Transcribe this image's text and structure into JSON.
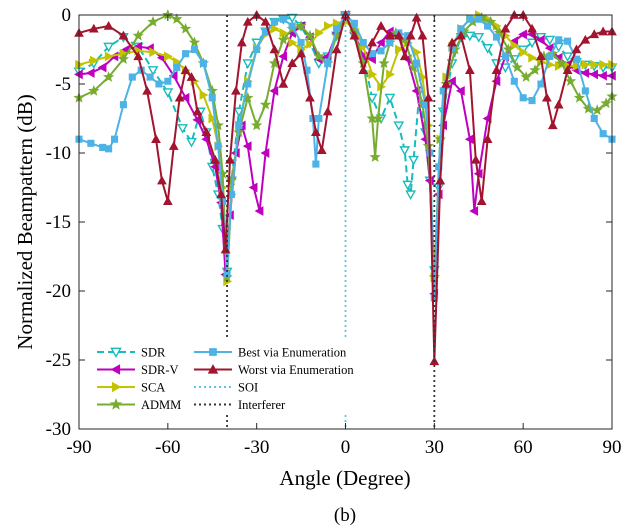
{
  "chart_data": {
    "type": "line",
    "title": "",
    "caption": "(b)",
    "xlabel": "Angle (Degree)",
    "ylabel": "Normalized Beampattern (dB)",
    "xlim": [
      -90,
      90
    ],
    "ylim": [
      -30,
      0
    ],
    "xticks": [
      -90,
      -60,
      -30,
      0,
      30,
      60,
      90
    ],
    "yticks": [
      0,
      -5,
      -10,
      -15,
      -20,
      -25,
      -30
    ],
    "grid": false,
    "legend_position": "bottom-left",
    "markers": {
      "SDR": "triangle-down",
      "SDR-V": "triangle-left",
      "SCA": "triangle-right",
      "ADMM": "star",
      "Best via Enumeration": "square",
      "Worst via Enumeration": "triangle-up"
    },
    "series": [
      {
        "name": "SDR",
        "color": "#17bcbc",
        "dash": "dashed",
        "x": [
          -90,
          -85,
          -80,
          -75,
          -70,
          -65,
          -60,
          -55,
          -52,
          -49,
          -47,
          -45,
          -43,
          -41.5,
          -40,
          -38.5,
          -36,
          -33,
          -30,
          -27,
          -24,
          -21,
          -18,
          -15,
          -12,
          -9,
          -6,
          -3,
          0,
          3,
          6,
          9,
          12,
          15,
          18,
          20,
          21,
          22,
          23,
          25,
          27,
          28.5,
          30,
          31.5,
          33,
          36,
          39,
          42,
          45,
          48,
          51,
          54,
          57,
          60,
          63,
          66,
          69,
          72,
          75,
          78,
          81,
          84,
          87,
          90
        ],
        "y": [
          -4.1,
          -3.5,
          -2.3,
          -1.6,
          -2.3,
          -4.0,
          -5.6,
          -8.2,
          -9.2,
          -7.0,
          -8.5,
          -11.0,
          -13.0,
          -15.5,
          -18.6,
          -12.0,
          -7.0,
          -3.5,
          -2.0,
          -1.2,
          -0.5,
          -0.3,
          -0.2,
          -0.8,
          -2.0,
          -3.5,
          -3.0,
          -1.5,
          0,
          -1.5,
          -3.0,
          -6.0,
          -7.5,
          -6.0,
          -8.0,
          -9.8,
          -12.3,
          -13.0,
          -10.5,
          -5.5,
          -8.5,
          -12.0,
          -18.5,
          -12.5,
          -7.0,
          -3.5,
          -1.6,
          -1.5,
          -1.6,
          -2.4,
          -3.5,
          -3.8,
          -3.2,
          -2.5,
          -2.0,
          -1.6,
          -1.8,
          -2.3,
          -3.0,
          -3.4,
          -3.6,
          -3.7,
          -3.8,
          -3.8
        ]
      },
      {
        "name": "SDR-V",
        "color": "#bf00bf",
        "dash": "solid",
        "x": [
          -90,
          -86,
          -82,
          -78,
          -74,
          -70,
          -66,
          -62,
          -58,
          -54,
          -50,
          -47,
          -44,
          -42,
          -40.5,
          -39,
          -37,
          -35,
          -33,
          -31,
          -29,
          -27,
          -24,
          -21,
          -18,
          -15,
          -12,
          -9,
          -6,
          -3,
          0,
          3,
          6,
          9,
          12,
          15,
          18,
          21,
          24,
          27,
          28.5,
          30,
          31.5,
          33,
          36,
          39,
          42,
          43.5,
          45,
          48,
          51,
          54,
          57,
          60,
          63,
          66,
          69,
          72,
          75,
          78,
          81,
          84,
          87,
          90
        ],
        "y": [
          -4.3,
          -4.2,
          -3.8,
          -3.0,
          -2.5,
          -2.3,
          -2.4,
          -3.1,
          -4.4,
          -6.0,
          -7.6,
          -9.0,
          -11.0,
          -13.6,
          -18.8,
          -14.5,
          -10.0,
          -8.0,
          -9.5,
          -12.5,
          -14.2,
          -10.0,
          -5.5,
          -3.0,
          -1.3,
          -0.8,
          -1.6,
          -3.2,
          -3.0,
          -1.3,
          0,
          -1.3,
          -3.0,
          -3.2,
          -2.0,
          -1.2,
          -1.6,
          -3.2,
          -5.5,
          -9.0,
          -12.0,
          -20.2,
          -13.0,
          -8.0,
          -4.8,
          -5.5,
          -9.0,
          -14.2,
          -11.5,
          -7.5,
          -4.8,
          -3.0,
          -1.9,
          -1.4,
          -1.4,
          -1.8,
          -2.4,
          -3.1,
          -3.6,
          -4.0,
          -4.2,
          -4.3,
          -4.4,
          -4.4
        ]
      },
      {
        "name": "SCA",
        "color": "#c3c300",
        "dash": "solid",
        "x": [
          -90,
          -85,
          -80,
          -75,
          -70,
          -65,
          -60,
          -57,
          -54,
          -51,
          -48,
          -45,
          -43,
          -41.5,
          -40,
          -38.5,
          -36,
          -33,
          -30,
          -27,
          -24,
          -21,
          -18,
          -15,
          -12,
          -9,
          -6,
          -3,
          0,
          3,
          6,
          9,
          12,
          15,
          18,
          21,
          24,
          26,
          28,
          30,
          32,
          34,
          36,
          39,
          42,
          45,
          48,
          51,
          54,
          57,
          60,
          63,
          66,
          69,
          72,
          75,
          78,
          81,
          84,
          87,
          90
        ],
        "y": [
          -3.6,
          -3.3,
          -3.0,
          -2.8,
          -2.6,
          -2.7,
          -3.0,
          -3.4,
          -4.0,
          -4.8,
          -5.8,
          -7.5,
          -9.5,
          -12.5,
          -19.3,
          -13.0,
          -8.0,
          -4.8,
          -2.4,
          -1.4,
          -1.0,
          -1.3,
          -2.0,
          -2.5,
          -2.1,
          -1.3,
          -0.8,
          -0.6,
          -0.5,
          -1.0,
          -2.3,
          -4.3,
          -5.2,
          -4.3,
          -2.5,
          -2.0,
          -2.7,
          -4.5,
          -8.0,
          -19.0,
          -9.0,
          -4.5,
          -2.3,
          -1.0,
          -0.3,
          0,
          -0.3,
          -0.8,
          -1.5,
          -2.2,
          -2.7,
          -3.1,
          -3.4,
          -3.6,
          -3.7,
          -3.7,
          -3.7,
          -3.6,
          -3.6,
          -3.6,
          -3.6
        ]
      },
      {
        "name": "ADMM",
        "color": "#77ac30",
        "dash": "solid",
        "x": [
          -90,
          -85,
          -80,
          -75,
          -70,
          -65,
          -60,
          -57,
          -54,
          -51,
          -48,
          -45,
          -43,
          -41.5,
          -40,
          -38.5,
          -36,
          -33,
          -30,
          -27,
          -24,
          -21,
          -18,
          -15,
          -12,
          -9,
          -6,
          -3,
          0,
          3,
          6,
          9,
          10,
          11,
          13,
          15,
          17,
          20,
          23,
          26,
          28,
          30,
          32,
          34,
          37,
          40,
          43,
          46,
          49,
          52,
          55,
          58,
          61,
          64,
          67,
          70,
          73,
          76,
          79,
          82,
          85,
          88,
          90
        ],
        "y": [
          -6.0,
          -5.5,
          -4.5,
          -3.2,
          -1.5,
          -0.5,
          0,
          -0.3,
          -1.0,
          -2.0,
          -3.5,
          -5.5,
          -8.0,
          -11.5,
          -19.0,
          -12.0,
          -8.5,
          -6.0,
          -8.0,
          -6.5,
          -3.5,
          -1.8,
          -1.0,
          -0.8,
          -1.5,
          -3.0,
          -3.5,
          -1.5,
          0,
          -1.2,
          -3.5,
          -7.5,
          -10.3,
          -7.5,
          -3.5,
          -2.0,
          -1.3,
          -1.8,
          -3.8,
          -6.5,
          -9.5,
          -19.0,
          -9.0,
          -5.0,
          -2.5,
          -1.2,
          -0.5,
          -0.2,
          -0.5,
          -1.3,
          -2.5,
          -3.8,
          -4.5,
          -4.0,
          -3.0,
          -2.8,
          -3.5,
          -4.8,
          -6.0,
          -6.8,
          -6.9,
          -6.4,
          -5.9
        ]
      },
      {
        "name": "Best via Enumeration",
        "color": "#4db3e6",
        "dash": "solid",
        "x": [
          -90,
          -86,
          -82,
          -80,
          -78,
          -75,
          -72,
          -69,
          -66,
          -63,
          -60,
          -57,
          -54,
          -51,
          -48,
          -45,
          -43,
          -41.5,
          -40,
          -38.5,
          -36,
          -33,
          -30,
          -27,
          -24,
          -21,
          -18,
          -15,
          -13,
          -11,
          -10,
          -9,
          -6,
          -3,
          0,
          3,
          6,
          9,
          12,
          15,
          18,
          21,
          24,
          27,
          28.5,
          30,
          31.5,
          33,
          36,
          39,
          42,
          45,
          48,
          51,
          54,
          57,
          60,
          63,
          66,
          69,
          72,
          75,
          78,
          81,
          84,
          87,
          90
        ],
        "y": [
          -9.0,
          -9.3,
          -9.6,
          -9.7,
          -9.0,
          -6.5,
          -4.5,
          -4.0,
          -4.5,
          -5.0,
          -4.8,
          -3.8,
          -2.8,
          -2.5,
          -3.5,
          -6.0,
          -9.5,
          -13.5,
          -18.8,
          -13.0,
          -8.0,
          -5.0,
          -2.5,
          -1.2,
          -0.5,
          -0.3,
          -0.8,
          -2.0,
          -4.0,
          -7.5,
          -10.8,
          -7.5,
          -3.5,
          -1.0,
          0,
          -0.6,
          -2.0,
          -2.8,
          -2.6,
          -2.0,
          -1.3,
          -1.5,
          -3.5,
          -6.5,
          -10.0,
          -20.5,
          -11.0,
          -5.5,
          -2.4,
          -1.0,
          -0.3,
          -0.3,
          -0.8,
          -1.6,
          -3.0,
          -4.8,
          -6.0,
          -6.2,
          -5.0,
          -3.0,
          -1.8,
          -1.9,
          -3.2,
          -5.5,
          -7.5,
          -8.6,
          -9.0
        ]
      },
      {
        "name": "Worst via Enumeration",
        "color": "#a2142f",
        "dash": "solid",
        "x": [
          -90,
          -85,
          -80,
          -75,
          -70,
          -67,
          -64,
          -62,
          -60,
          -58,
          -56,
          -54,
          -52,
          -50,
          -47,
          -44,
          -42,
          -40.5,
          -39,
          -37,
          -35,
          -33,
          -30,
          -27,
          -24,
          -21,
          -18,
          -15,
          -12,
          -10,
          -8,
          -6,
          -3,
          0,
          3,
          6,
          9,
          12,
          15,
          18,
          20,
          22,
          24,
          26,
          28,
          30,
          32,
          34,
          36,
          39,
          42,
          44,
          46,
          48,
          51,
          54,
          57,
          60,
          63,
          66,
          68,
          70,
          72,
          75,
          78,
          81,
          84,
          87,
          90
        ],
        "y": [
          -1.3,
          -1.0,
          -0.8,
          -1.5,
          -3.0,
          -5.5,
          -9.0,
          -12.0,
          -13.5,
          -9.5,
          -6.0,
          -4.0,
          -4.5,
          -7.0,
          -8.5,
          -10.5,
          -13.0,
          -17.0,
          -10.5,
          -5.5,
          -2.0,
          -0.5,
          0,
          -0.5,
          -2.5,
          -5.0,
          -3.5,
          -2.8,
          -6.0,
          -8.5,
          -9.8,
          -7.0,
          -2.5,
          0,
          -1.5,
          -4.0,
          -2.0,
          -0.8,
          -1.5,
          -1.5,
          -3.0,
          -1.5,
          -0.2,
          -1.5,
          -6.0,
          -25.1,
          -12.0,
          -5.0,
          -2.0,
          -1.5,
          -4.0,
          -10.5,
          -13.5,
          -9.0,
          -4.0,
          -1.0,
          0,
          0,
          -1.0,
          -3.0,
          -6.0,
          -8.0,
          -6.5,
          -4.0,
          -2.5,
          -1.8,
          -1.4,
          -1.2,
          -1.2
        ]
      },
      {
        "name": "SOI",
        "color": "#5bc5e5",
        "dash": "dotted",
        "x": [
          0,
          0
        ],
        "y": [
          0,
          -30
        ]
      },
      {
        "name": "Interferer",
        "color": "#333333",
        "dash": "dotted",
        "x": [
          -40,
          -40,
          30,
          30
        ],
        "y": [
          0,
          -30,
          0,
          -30
        ]
      }
    ]
  }
}
